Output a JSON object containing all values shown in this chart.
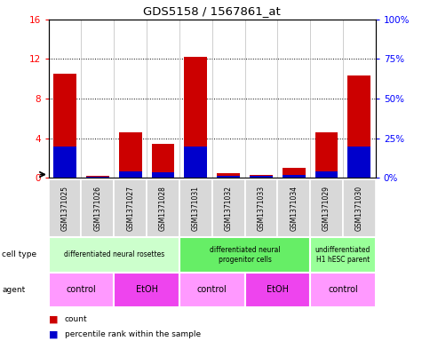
{
  "title": "GDS5158 / 1567861_at",
  "samples": [
    "GSM1371025",
    "GSM1371026",
    "GSM1371027",
    "GSM1371028",
    "GSM1371031",
    "GSM1371032",
    "GSM1371033",
    "GSM1371034",
    "GSM1371029",
    "GSM1371030"
  ],
  "counts": [
    10.5,
    0.2,
    4.6,
    3.4,
    12.2,
    0.5,
    0.3,
    1.0,
    4.6,
    10.3
  ],
  "percentiles_pct": [
    20,
    1.0,
    4.0,
    3.5,
    20,
    1.2,
    1.2,
    2.0,
    4.0,
    20
  ],
  "bar_color": "#cc0000",
  "pct_color": "#0000cc",
  "ylim_left": [
    0,
    16
  ],
  "ylim_right": [
    0,
    100
  ],
  "yticks_left": [
    0,
    4,
    8,
    12,
    16
  ],
  "ytick_labels_left": [
    "0",
    "4",
    "8",
    "12",
    "16"
  ],
  "yticks_right": [
    0,
    25,
    50,
    75,
    100
  ],
  "ytick_labels_right": [
    "0%",
    "25%",
    "50%",
    "75%",
    "100%"
  ],
  "cell_type_groups": [
    {
      "label": "differentiated neural rosettes",
      "start": 0,
      "end": 4,
      "color": "#ccffcc"
    },
    {
      "label": "differentiated neural\nprogenitor cells",
      "start": 4,
      "end": 8,
      "color": "#66ee66"
    },
    {
      "label": "undifferentiated\nH1 hESC parent",
      "start": 8,
      "end": 10,
      "color": "#99ff99"
    }
  ],
  "agent_groups": [
    {
      "label": "control",
      "start": 0,
      "end": 2,
      "color": "#ff99ff"
    },
    {
      "label": "EtOH",
      "start": 2,
      "end": 4,
      "color": "#ee44ee"
    },
    {
      "label": "control",
      "start": 4,
      "end": 6,
      "color": "#ff99ff"
    },
    {
      "label": "EtOH",
      "start": 6,
      "end": 8,
      "color": "#ee44ee"
    },
    {
      "label": "control",
      "start": 8,
      "end": 10,
      "color": "#ff99ff"
    }
  ],
  "bg_color": "#d8d8d8",
  "plot_bg": "#ffffff",
  "legend_count_color": "#cc0000",
  "legend_pct_color": "#0000cc",
  "cell_type_label": "cell type",
  "agent_label": "agent",
  "bar_width": 0.7
}
